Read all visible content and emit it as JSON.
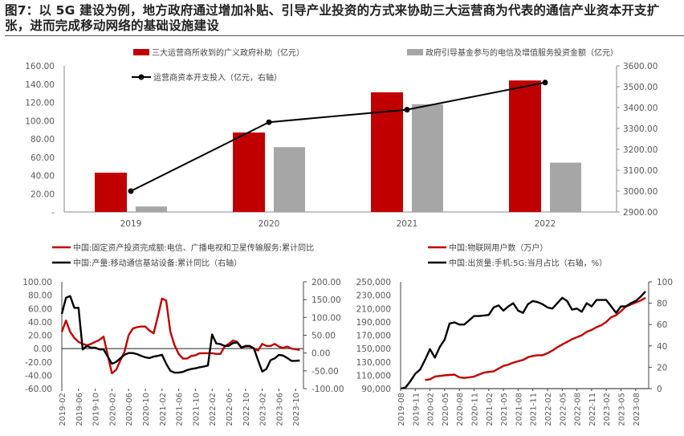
{
  "title": "图7：以 5G 建设为例，地方政府通过增加补贴、引导产业投资的方式来协助三大运营商为代表的通信产业资本开支扩张，进而完成移动网络的基础设施建设",
  "colors": {
    "red": "#c00000",
    "gray": "#a6a6a6",
    "black": "#000000",
    "axis_text": "#595959"
  },
  "chart_data": [
    {
      "type": "bar",
      "categories": [
        "2019",
        "2020",
        "2021",
        "2022"
      ],
      "series": [
        {
          "name": "三大运营商所收到的广义政府补助（亿元）",
          "type": "bar",
          "axis": "left",
          "color": "#c00000",
          "values": [
            43,
            87,
            131,
            144
          ]
        },
        {
          "name": "政府引导基金参与的电信及增值服务投资金额（亿元）",
          "type": "bar",
          "axis": "left",
          "color": "#a6a6a6",
          "values": [
            6,
            71,
            118,
            54
          ]
        },
        {
          "name": "运营商资本开支投入（亿元，右轴）",
          "type": "line",
          "axis": "right",
          "color": "#000000",
          "values": [
            3000,
            3330,
            3390,
            3520
          ]
        }
      ],
      "ylim": [
        0,
        160
      ],
      "yticks": [
        "-",
        "20.00",
        "40.00",
        "60.00",
        "80.00",
        "100.00",
        "120.00",
        "140.00",
        "160.00"
      ],
      "y2lim": [
        2900,
        3600
      ],
      "y2ticks": [
        "2900.00",
        "3000.00",
        "3100.00",
        "3200.00",
        "3300.00",
        "3400.00",
        "3500.00",
        "3600.00"
      ],
      "legend": "top"
    },
    {
      "type": "line",
      "x_start": "2019-02",
      "xticks": [
        "2019-02",
        "2019-06",
        "2019-10",
        "2020-02",
        "2020-06",
        "2020-10",
        "2021-02",
        "2021-06",
        "2021-10",
        "2022-02",
        "2022-06",
        "2022-10",
        "2023-02",
        "2023-06",
        "2023-10"
      ],
      "series": [
        {
          "name": "中国:固定资产投资完成额:电信、广播电视和卫星传输服务:累计同比",
          "axis": "left",
          "color": "#c00000",
          "values": [
            25,
            42,
            25,
            16,
            10,
            7,
            5,
            7,
            10,
            13,
            18,
            -10,
            -37,
            -32,
            -18,
            -5,
            20,
            30,
            32,
            33,
            33,
            27,
            23,
            48,
            75,
            72,
            25,
            5,
            -8,
            -15,
            -15,
            -11,
            -10,
            -7,
            -7,
            -7,
            -7,
            -8,
            -8,
            3,
            7,
            12,
            10,
            2,
            3,
            3,
            0,
            -3,
            7,
            4,
            4,
            7,
            3,
            1,
            3,
            0,
            -1,
            -2
          ]
        },
        {
          "name": "中国:产量:移动通信基站设备:累计同比（右轴）",
          "axis": "right",
          "color": "#000000",
          "values": [
            110,
            155,
            160,
            127,
            127,
            10,
            20,
            15,
            15,
            10,
            10,
            -10,
            -30,
            -25,
            -15,
            -5,
            0,
            0,
            -3,
            -8,
            -12,
            -14,
            -10,
            -8,
            -5,
            -30,
            -50,
            -55,
            -55,
            -53,
            -48,
            -45,
            -43,
            -40,
            -38,
            -35,
            52,
            27,
            25,
            20,
            20,
            28,
            30,
            15,
            20,
            20,
            13,
            -20,
            -52,
            -45,
            -20,
            -15,
            -5,
            -7,
            -14,
            -22,
            -22,
            -21
          ]
        }
      ],
      "ylim": [
        -60,
        100
      ],
      "yticks": [
        "-60.00",
        "-40.00",
        "-20.00",
        "0.00",
        "20.00",
        "40.00",
        "60.00",
        "80.00",
        "100.00"
      ],
      "y2lim": [
        -100,
        200
      ],
      "y2ticks": [
        "-100.00",
        "-50.00",
        "0.00",
        "50.00",
        "100.00",
        "150.00",
        "200.00"
      ],
      "legend": "top"
    },
    {
      "type": "line",
      "x_start": "2019-08",
      "xticks": [
        "2019-08",
        "2019-11",
        "2020-02",
        "2020-05",
        "2020-08",
        "2020-11",
        "2021-02",
        "2021-05",
        "2021-08",
        "2021-11",
        "2022-02",
        "2022-05",
        "2022-08",
        "2022-11",
        "2023-02",
        "2023-05",
        "2023-08"
      ],
      "series": [
        {
          "name": "中国:物联网用户数（万户）",
          "axis": "left",
          "color": "#c00000",
          "start": "2020-01",
          "values": [
            103000,
            104000,
            108000,
            109000,
            110000,
            110500,
            111000,
            107000,
            106000,
            107000,
            108000,
            111000,
            114000,
            115000,
            116000,
            120000,
            124000,
            126000,
            129000,
            131000,
            133000,
            137000,
            139000,
            140000,
            140000,
            143000,
            147000,
            152000,
            156000,
            160000,
            164000,
            167000,
            170000,
            175000,
            178000,
            182000,
            185000,
            190000,
            197000,
            200000,
            206000,
            213000,
            216000,
            219000,
            222000,
            226000
          ]
        },
        {
          "name": "中国:出货量:手机:5G:当月占比（右轴，%）",
          "axis": "right",
          "color": "#000000",
          "start": "2019-08",
          "values": [
            0,
            1,
            7,
            14,
            18,
            27,
            37,
            29,
            39,
            46,
            61,
            62,
            60,
            60,
            64,
            68,
            68,
            68.5,
            69,
            76,
            78,
            73,
            77,
            80,
            73,
            71,
            79,
            82,
            81,
            79,
            76,
            75,
            80,
            85,
            82,
            74,
            75,
            72,
            80,
            77,
            83,
            83,
            83,
            77,
            71,
            77,
            77,
            80,
            82,
            86,
            91
          ]
        }
      ],
      "ylim": [
        90000,
        250000
      ],
      "yticks": [
        "90,000",
        "110,000",
        "130,000",
        "150,000",
        "170,000",
        "190,000",
        "210,000",
        "230,000",
        "250,000"
      ],
      "y2lim": [
        0,
        100
      ],
      "y2ticks": [
        "0",
        "20",
        "40",
        "60",
        "80",
        "100"
      ],
      "legend": "top"
    }
  ]
}
